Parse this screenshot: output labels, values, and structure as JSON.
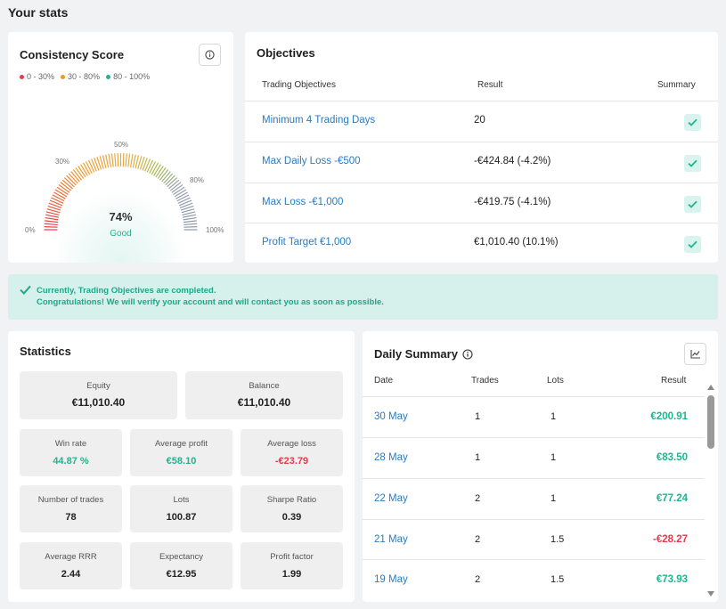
{
  "page_title": "Your stats",
  "consistency": {
    "title": "Consistency Score",
    "legend": [
      {
        "label": "0 - 30%",
        "color": "#e8394d"
      },
      {
        "label": "30 - 80%",
        "color": "#f0982b"
      },
      {
        "label": "80 - 100%",
        "color": "#21b48f"
      }
    ],
    "gauge_labels": {
      "p0": "0%",
      "p30": "30%",
      "p50": "50%",
      "p80": "80%",
      "p100": "100%"
    },
    "score": "74%",
    "score_value": 74,
    "rating": "Good",
    "info_icon": "info-icon"
  },
  "objectives": {
    "title": "Objectives",
    "headers": {
      "objective": "Trading Objectives",
      "result": "Result",
      "summary": "Summary"
    },
    "rows": [
      {
        "name": "Minimum 4 Trading Days",
        "result": "20",
        "passed": true
      },
      {
        "name": "Max Daily Loss -€500",
        "result": "-€424.84 (-4.2%)",
        "passed": true
      },
      {
        "name": "Max Loss -€1,000",
        "result": "-€419.75 (-4.1%)",
        "passed": true
      },
      {
        "name": "Profit Target €1,000",
        "result": "€1,010.40 (10.1%)",
        "passed": true
      }
    ]
  },
  "banner": {
    "line1": "Currently, Trading Objectives are completed.",
    "line2": "Congratulations! We will verify your account and will contact you as soon as possible."
  },
  "statistics": {
    "title": "Statistics",
    "equity": {
      "label": "Equity",
      "value": "€11,010.40"
    },
    "balance": {
      "label": "Balance",
      "value": "€11,010.40"
    },
    "grid": [
      {
        "label": "Win rate",
        "value": "44.87 %",
        "tone": "green"
      },
      {
        "label": "Average profit",
        "value": "€58.10",
        "tone": "green"
      },
      {
        "label": "Average loss",
        "value": "-€23.79",
        "tone": "red"
      },
      {
        "label": "Number of trades",
        "value": "78",
        "tone": ""
      },
      {
        "label": "Lots",
        "value": "100.87",
        "tone": ""
      },
      {
        "label": "Sharpe Ratio",
        "value": "0.39",
        "tone": ""
      },
      {
        "label": "Average RRR",
        "value": "2.44",
        "tone": ""
      },
      {
        "label": "Expectancy",
        "value": "€12.95",
        "tone": ""
      },
      {
        "label": "Profit factor",
        "value": "1.99",
        "tone": ""
      }
    ]
  },
  "daily": {
    "title": "Daily Summary",
    "headers": {
      "date": "Date",
      "trades": "Trades",
      "lots": "Lots",
      "result": "Result"
    },
    "rows": [
      {
        "date": "30 May",
        "trades": "1",
        "lots": "1",
        "result": "€200.91",
        "tone": "green"
      },
      {
        "date": "28 May",
        "trades": "1",
        "lots": "1",
        "result": "€83.50",
        "tone": "green"
      },
      {
        "date": "22 May",
        "trades": "2",
        "lots": "1",
        "result": "€77.24",
        "tone": "green"
      },
      {
        "date": "21 May",
        "trades": "2",
        "lots": "1.5",
        "result": "-€28.27",
        "tone": "red"
      },
      {
        "date": "19 May",
        "trades": "2",
        "lots": "1.5",
        "result": "€73.93",
        "tone": "green"
      }
    ]
  }
}
